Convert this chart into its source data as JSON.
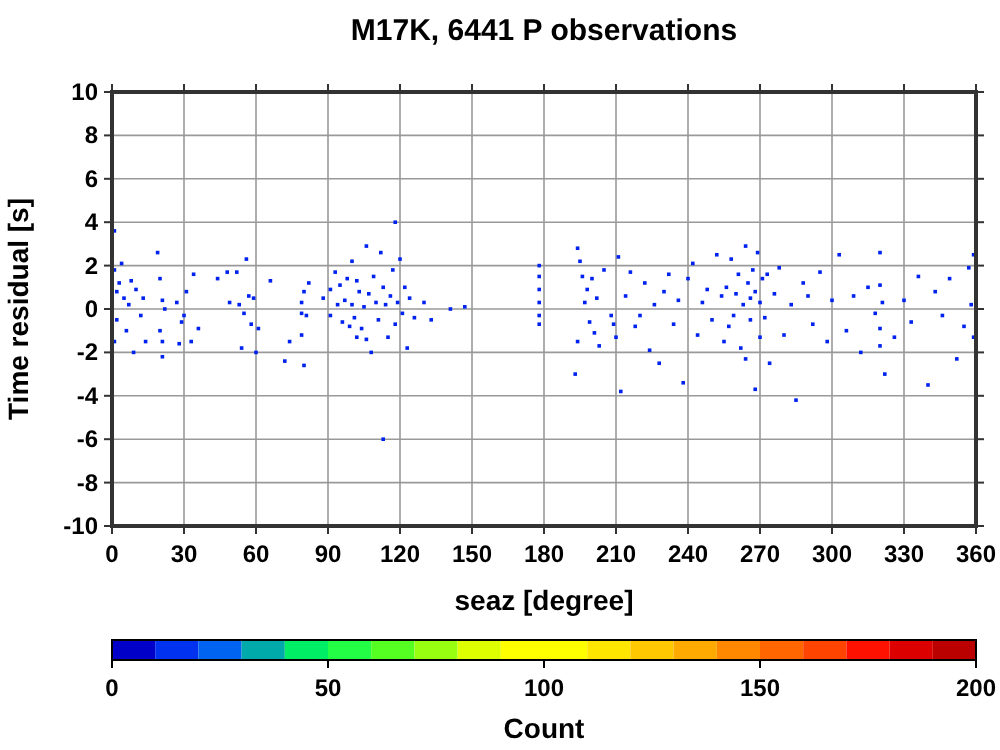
{
  "chart_data": {
    "type": "scatter",
    "title": "M17K, 6441 P observations",
    "xlabel": "seaz [degree]",
    "ylabel": "Time residual [s]",
    "clabel": "Count",
    "marker": "square",
    "grid": true,
    "xlim": [
      0,
      360
    ],
    "xticks": [
      0,
      30,
      60,
      90,
      120,
      150,
      180,
      210,
      240,
      270,
      300,
      330,
      360
    ],
    "ylim": [
      -10,
      10
    ],
    "yticks": [
      -10,
      -8,
      -6,
      -4,
      -2,
      0,
      2,
      4,
      6,
      8,
      10
    ],
    "clim": [
      0,
      200
    ],
    "cticks": [
      0,
      50,
      100,
      150,
      200
    ],
    "series": [
      {
        "color": "#0022ee",
        "x": [
          1,
          1,
          1,
          2,
          2,
          3,
          4,
          5,
          6,
          7,
          8,
          9,
          10,
          12,
          13,
          14,
          19,
          20,
          20,
          21,
          21,
          21,
          22,
          27,
          28,
          29,
          30,
          31,
          33,
          34,
          36,
          44,
          48,
          49,
          52,
          53,
          54,
          55,
          56,
          57,
          58,
          59,
          60,
          61,
          66,
          72,
          74,
          79,
          79,
          79,
          80,
          80,
          81,
          82,
          88,
          91,
          91,
          93,
          94,
          95,
          96,
          97,
          98,
          99,
          100,
          100,
          101,
          102,
          102,
          103,
          104,
          105,
          106,
          106,
          107,
          108,
          109,
          110,
          111,
          112,
          113,
          113,
          114,
          115,
          116,
          117,
          118,
          118,
          119,
          120,
          121,
          122,
          123,
          124,
          126,
          130,
          133,
          141,
          147,
          178,
          178,
          178,
          178,
          178,
          178,
          193,
          194,
          194,
          195,
          196,
          197,
          198,
          199,
          200,
          201,
          202,
          203,
          205,
          208,
          209,
          210,
          211,
          212,
          214,
          216,
          218,
          220,
          222,
          224,
          226,
          228,
          230,
          232,
          234,
          236,
          238,
          240,
          242,
          244,
          246,
          248,
          250,
          252,
          254,
          255,
          256,
          257,
          258,
          259,
          260,
          261,
          262,
          263,
          264,
          264,
          265,
          266,
          266,
          267,
          268,
          268,
          269,
          270,
          270,
          271,
          272,
          273,
          274,
          276,
          278,
          280,
          283,
          285,
          288,
          290,
          292,
          295,
          298,
          300,
          303,
          306,
          309,
          312,
          315,
          318,
          320,
          320,
          320,
          320,
          321,
          322,
          326,
          330,
          333,
          336,
          340,
          343,
          346,
          349,
          352,
          355,
          357,
          358,
          359,
          359
        ],
        "values": [
          3.6,
          1.8,
          -1.5,
          0.8,
          -0.5,
          1.2,
          2.1,
          0.5,
          -1,
          0.2,
          1.3,
          -2,
          0.9,
          -0.3,
          0.5,
          -1.5,
          2.6,
          1.4,
          -1,
          0.4,
          -2.2,
          -1.5,
          0,
          0.3,
          -1.6,
          -0.6,
          -0.3,
          0.8,
          -1.5,
          1.6,
          -0.9,
          1.4,
          1.7,
          0.3,
          1.7,
          0.2,
          -1.8,
          -0.2,
          2.3,
          0.6,
          -0.7,
          0.5,
          -2,
          -0.9,
          1.3,
          -2.4,
          -1.5,
          0.3,
          -0.2,
          -1.2,
          -2.6,
          0.8,
          -0.3,
          1.2,
          0.5,
          0.9,
          -0.3,
          1.7,
          0.2,
          1.1,
          -0.6,
          0.4,
          1.4,
          -0.8,
          0.2,
          2.2,
          -0.4,
          1.3,
          -1.3,
          0.8,
          -0.9,
          0.1,
          2.9,
          -1.4,
          0.7,
          -2,
          1.5,
          0.3,
          -0.5,
          2.6,
          -6,
          1,
          0.2,
          -1.3,
          0.6,
          1.8,
          4,
          -0.7,
          0.3,
          2.3,
          -0.2,
          1,
          -1.8,
          0.5,
          -0.4,
          0.3,
          -0.5,
          0,
          0.1,
          2,
          1.5,
          0.9,
          0.3,
          -0.3,
          -0.7,
          -3,
          2.8,
          -1.5,
          2.2,
          1.5,
          0.3,
          0.9,
          -0.6,
          1.4,
          -1.1,
          0.5,
          -1.7,
          1.8,
          -0.3,
          -0.7,
          -1.3,
          2.4,
          -3.8,
          0.6,
          1.7,
          -0.8,
          -0.3,
          1.2,
          -1.9,
          0.2,
          -2.5,
          0.8,
          1.6,
          -0.7,
          0.4,
          -3.4,
          1.4,
          2.1,
          -1.2,
          0.3,
          0.9,
          -0.5,
          2.5,
          0.6,
          -1.5,
          1,
          -0.8,
          2.3,
          -0.3,
          0.7,
          1.6,
          -1.8,
          0.2,
          2.9,
          -2.3,
          1.2,
          0.5,
          -0.5,
          1.8,
          0.8,
          -3.7,
          2.6,
          -1.3,
          0.3,
          1.4,
          -0.4,
          1.6,
          -2.5,
          0.7,
          1.9,
          -1.2,
          0.2,
          -4.2,
          1.2,
          0.6,
          -0.7,
          1.7,
          -1.5,
          0.4,
          2.5,
          -1,
          0.6,
          -2,
          1,
          -0.2,
          2.6,
          -1.7,
          1.1,
          -0.9,
          0.3,
          -3,
          -1.3,
          0.4,
          -0.6,
          1.5,
          -3.5,
          0.8,
          -0.3,
          1.4,
          -2.3,
          -0.8,
          1.9,
          0.2,
          2.5,
          -1.3
        ]
      }
    ]
  }
}
